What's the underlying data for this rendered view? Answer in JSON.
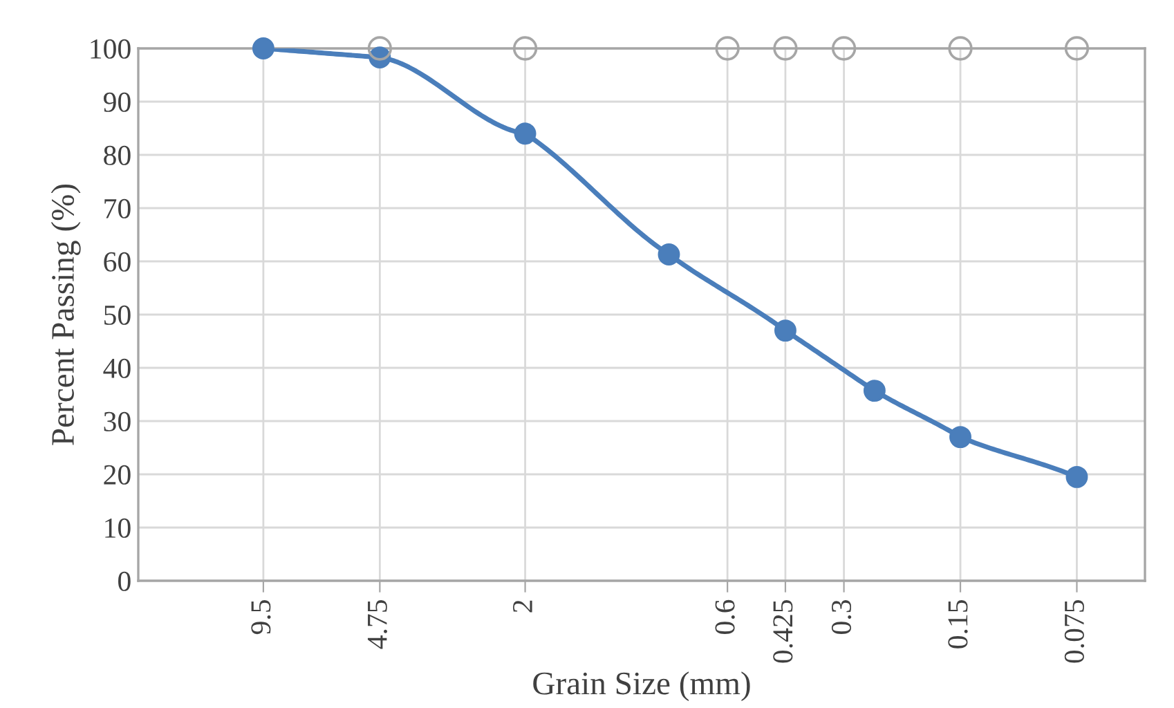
{
  "chart_data": {
    "type": "line",
    "xlabel": "Grain Size (mm)",
    "ylabel": "Percent Passing (%)",
    "log": "x",
    "xlim": [
      20,
      0.05
    ],
    "xticks": [
      9.5,
      4.75,
      2,
      0.6,
      0.425,
      0.3,
      0.15,
      0.075
    ],
    "ylim": [
      0,
      100
    ],
    "yticks": [
      0,
      10,
      20,
      30,
      40,
      50,
      60,
      70,
      80,
      90,
      100
    ],
    "grid": true,
    "series": [
      {
        "color": "#4a7ebb",
        "marker": "circle",
        "line_style": "solid",
        "x": [
          9.5,
          4.75,
          2,
          0.85,
          0.425,
          0.25,
          0.15,
          0.075
        ],
        "values": [
          100,
          98.3,
          84,
          61.3,
          47,
          35.7,
          27,
          19.5
        ]
      },
      {
        "type": "scatter",
        "color": "#a6a6a6",
        "marker": "circle",
        "x": [
          4.75,
          2,
          0.6,
          0.425,
          0.3,
          0.15,
          0.075
        ],
        "values": [
          100,
          100,
          100,
          100,
          100,
          100,
          100
        ]
      }
    ]
  }
}
